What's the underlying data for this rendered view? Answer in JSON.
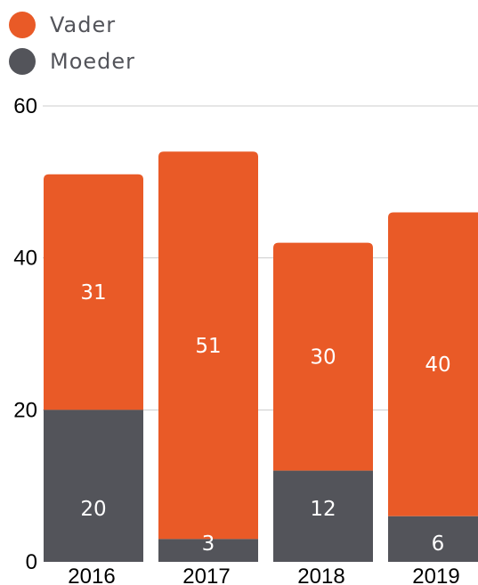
{
  "colors": {
    "vader": "#e95a27",
    "moeder": "#53545a",
    "grid": "#cccccc"
  },
  "chart_data": {
    "type": "bar",
    "stacked": true,
    "categories": [
      "2016",
      "2017",
      "2018",
      "2019"
    ],
    "series": [
      {
        "name": "Moeder",
        "values": [
          20,
          3,
          12,
          6
        ]
      },
      {
        "name": "Vader",
        "values": [
          31,
          51,
          30,
          40
        ]
      }
    ],
    "ylim": [
      0,
      60
    ],
    "yticks": [
      "0",
      "20",
      "40",
      "60"
    ],
    "grid": true,
    "legend": "top-left"
  }
}
